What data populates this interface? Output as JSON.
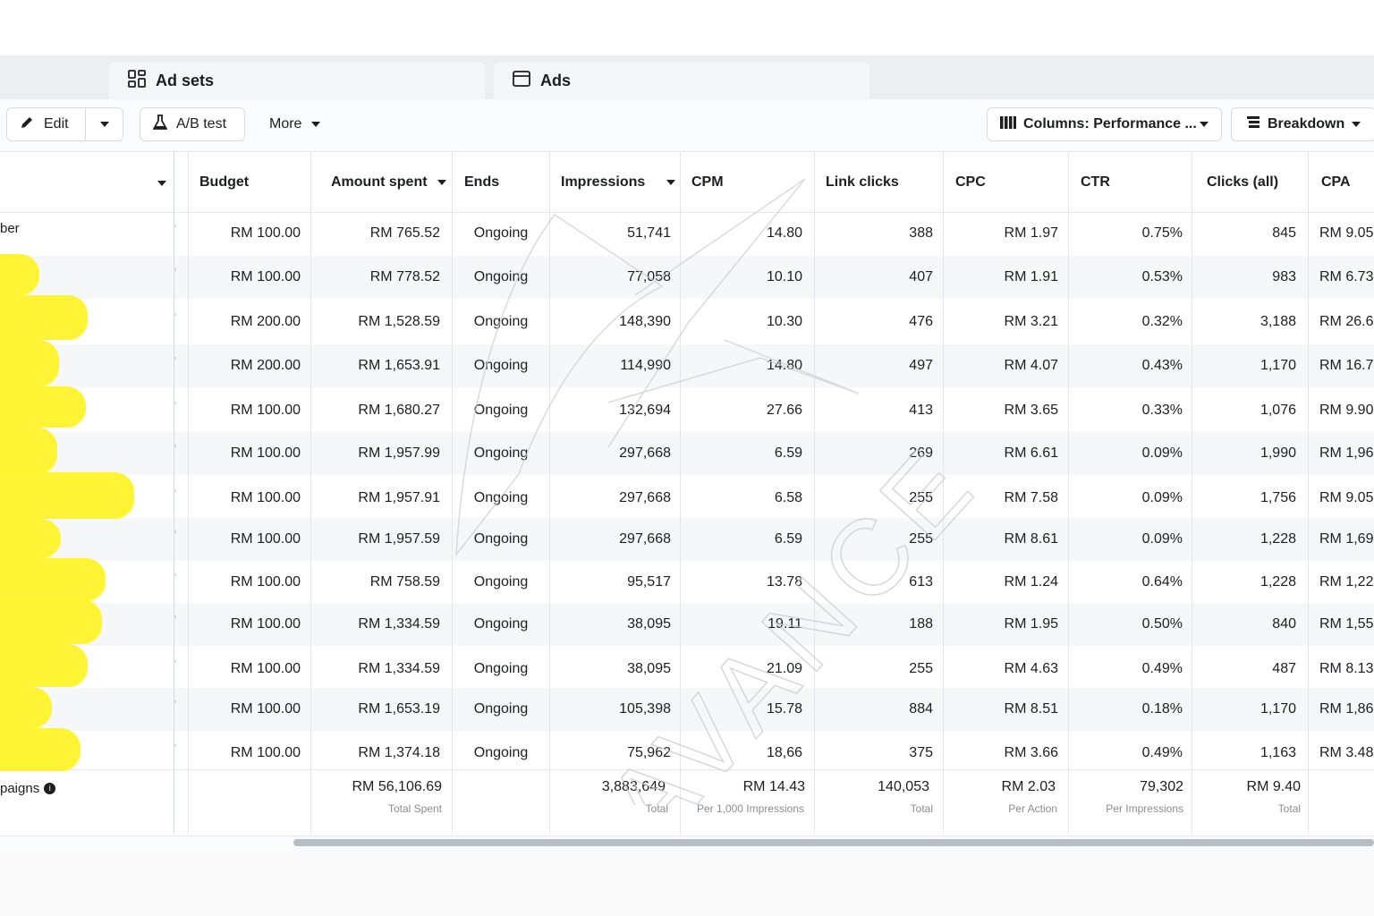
{
  "tabs": [
    {
      "label": "Ad sets",
      "icon": "grid-icon"
    },
    {
      "label": "Ads",
      "icon": "ad-icon"
    }
  ],
  "toolbar": {
    "edit_label": "Edit",
    "ab_test_label": "A/B test",
    "more_label": "More",
    "columns_label": "Columns: Performance ...",
    "breakdown_label": "Breakdown"
  },
  "table": {
    "headers": [
      "Budget",
      "Amount spent",
      "Ends",
      "Impressions",
      "CPM",
      "Link clicks",
      "CPC",
      "CTR",
      "Clicks (all)",
      "CPA"
    ],
    "first_row_name_fragment": "ber",
    "rows": [
      [
        "RM 100.00",
        "RM 765.52",
        "Ongoing",
        "51,741",
        "14.80",
        "388",
        "RM 1.97",
        "0.75%",
        "845",
        "RM 9.05"
      ],
      [
        "RM 100.00",
        "RM 778.52",
        "Ongoing",
        "77,058",
        "10.10",
        "407",
        "RM 1.91",
        "0.53%",
        "983",
        "RM 6.73"
      ],
      [
        "RM 200.00",
        "RM 1,528.59",
        "Ongoing",
        "148,390",
        "10.30",
        "476",
        "RM 3.21",
        "0.32%",
        "3,188",
        "RM 26.6"
      ],
      [
        "RM 200.00",
        "RM 1,653.91",
        "Ongoing",
        "114,990",
        "14.80",
        "497",
        "RM 4.07",
        "0.43%",
        "1,170",
        "RM 16.7"
      ],
      [
        "RM 100.00",
        "RM 1,680.27",
        "Ongoing",
        "132,694",
        "27.66",
        "413",
        "RM 3.65",
        "0.33%",
        "1,076",
        "RM 9.90"
      ],
      [
        "RM 100.00",
        "RM 1,957.99",
        "Ongoing",
        "297,668",
        "6.59",
        "269",
        "RM 6.61",
        "0.09%",
        "1,990",
        "RM 1,96"
      ],
      [
        "RM 100.00",
        "RM 1,957.91",
        "Ongoing",
        "297,668",
        "6.58",
        "255",
        "RM 7.58",
        "0.09%",
        "1,756",
        "RM 9.05"
      ],
      [
        "RM 100.00",
        "RM 1,957.59",
        "Ongoing",
        "297,668",
        "6.59",
        "255",
        "RM 8.61",
        "0.09%",
        "1,228",
        "RM 1,69"
      ],
      [
        "RM 100.00",
        "RM 758.59",
        "Ongoing",
        "95,517",
        "13.78",
        "613",
        "RM 1.24",
        "0.64%",
        "1,228",
        "RM 1,22"
      ],
      [
        "RM 100.00",
        "RM 1,334.59",
        "Ongoing",
        "38,095",
        "19.11",
        "188",
        "RM 1.95",
        "0.50%",
        "840",
        "RM 1,55"
      ],
      [
        "RM 100.00",
        "RM 1,334.59",
        "Ongoing",
        "38,095",
        "21.09",
        "255",
        "RM 4.63",
        "0.49%",
        "487",
        "RM 8.13"
      ],
      [
        "RM 100.00",
        "RM 1,653.19",
        "Ongoing",
        "105,398",
        "15.78",
        "884",
        "RM 8.51",
        "0.18%",
        "1,170",
        "RM 1,86"
      ],
      [
        "RM 100.00",
        "RM 1,374.18",
        "Ongoing",
        "75,962",
        "18,66",
        "375",
        "RM 3.66",
        "0.49%",
        "1,163",
        "RM 3.48"
      ]
    ],
    "totals": {
      "label": "paigns",
      "amount_spent": "RM 56,106.69",
      "amount_spent_sub": "Total Spent",
      "impressions": "3,883,649",
      "impressions_sub": "Total",
      "cpm": "RM 14.43",
      "cpm_sub": "Per 1,000 Impressions",
      "link_clicks": "140,053",
      "link_clicks_sub": "Total",
      "cpc": "RM 2.03",
      "cpc_sub": "Per Action",
      "ctr": "79,302",
      "ctr_sub": "Per Impressions",
      "clicks_all": "RM 9.40",
      "clicks_all_sub": "Total"
    }
  },
  "watermark_text": "AVANCE"
}
